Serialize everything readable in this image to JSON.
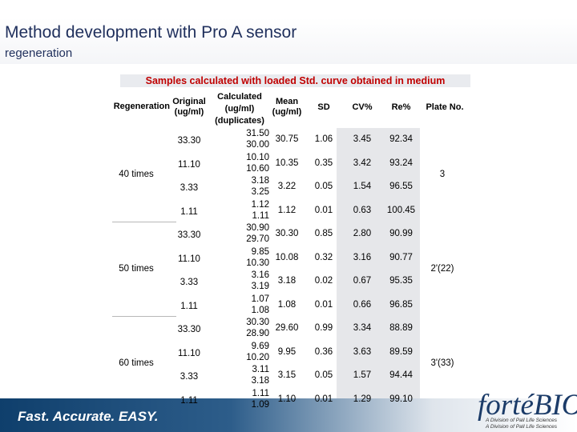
{
  "title": "Method development with Pro A sensor",
  "subtitle": "regeneration",
  "table": {
    "caption": "Samples calculated with loaded Std. curve obtained in medium",
    "headers": {
      "regeneration": "Regeneration",
      "original": "Original\n(ug/ml)",
      "calculated": "Calculated\n(ug/ml)\n(duplicates)",
      "mean": "Mean\n(ug/ml)",
      "sd": "SD",
      "cv": "CV%",
      "re": "Re%",
      "plate": "Plate No."
    },
    "groups": [
      {
        "regeneration": "40 times",
        "plate": "3",
        "rows": [
          {
            "original": "33.30",
            "dup1": "31.50",
            "dup2": "30.00",
            "mean": "30.75",
            "sd": "1.06",
            "cv": "3.45",
            "re": "92.34"
          },
          {
            "original": "11.10",
            "dup1": "10.10",
            "dup2": "10.60",
            "mean": "10.35",
            "sd": "0.35",
            "cv": "3.42",
            "re": "93.24"
          },
          {
            "original": "3.33",
            "dup1": "3.18",
            "dup2": "3.25",
            "mean": "3.22",
            "sd": "0.05",
            "cv": "1.54",
            "re": "96.55"
          },
          {
            "original": "1.11",
            "dup1": "1.12",
            "dup2": "1.11",
            "mean": "1.12",
            "sd": "0.01",
            "cv": "0.63",
            "re": "100.45"
          }
        ]
      },
      {
        "regeneration": "50 times",
        "plate": "2'(22)",
        "rows": [
          {
            "original": "33.30",
            "dup1": "30.90",
            "dup2": "29.70",
            "mean": "30.30",
            "sd": "0.85",
            "cv": "2.80",
            "re": "90.99"
          },
          {
            "original": "11.10",
            "dup1": "9.85",
            "dup2": "10.30",
            "mean": "10.08",
            "sd": "0.32",
            "cv": "3.16",
            "re": "90.77"
          },
          {
            "original": "3.33",
            "dup1": "3.16",
            "dup2": "3.19",
            "mean": "3.18",
            "sd": "0.02",
            "cv": "0.67",
            "re": "95.35"
          },
          {
            "original": "1.11",
            "dup1": "1.07",
            "dup2": "1.08",
            "mean": "1.08",
            "sd": "0.01",
            "cv": "0.66",
            "re": "96.85"
          }
        ]
      },
      {
        "regeneration": "60 times",
        "plate": "3'(33)",
        "rows": [
          {
            "original": "33.30",
            "dup1": "30.30",
            "dup2": "28.90",
            "mean": "29.60",
            "sd": "0.99",
            "cv": "3.34",
            "re": "88.89"
          },
          {
            "original": "11.10",
            "dup1": "9.69",
            "dup2": "10.20",
            "mean": "9.95",
            "sd": "0.36",
            "cv": "3.63",
            "re": "89.59"
          },
          {
            "original": "3.33",
            "dup1": "3.11",
            "dup2": "3.18",
            "mean": "3.15",
            "sd": "0.05",
            "cv": "1.57",
            "re": "94.44"
          },
          {
            "original": "1.11",
            "dup1": "1.11",
            "dup2": "1.09",
            "mean": "1.10",
            "sd": "0.01",
            "cv": "1.29",
            "re": "99.10"
          }
        ]
      }
    ]
  },
  "footer": {
    "tagline": "Fast. Accurate. EASY.",
    "logo_text": "fortéBIO",
    "logo_sub1": "A Division of Pall Life Sciences",
    "logo_sub2": "A Division of Pall Life Sciences"
  },
  "colors": {
    "caption_text": "#c00000",
    "title_text": "#1f2f5c",
    "shaded_column": "#e6e7ea",
    "footer_blue": "#0f3f6c"
  }
}
